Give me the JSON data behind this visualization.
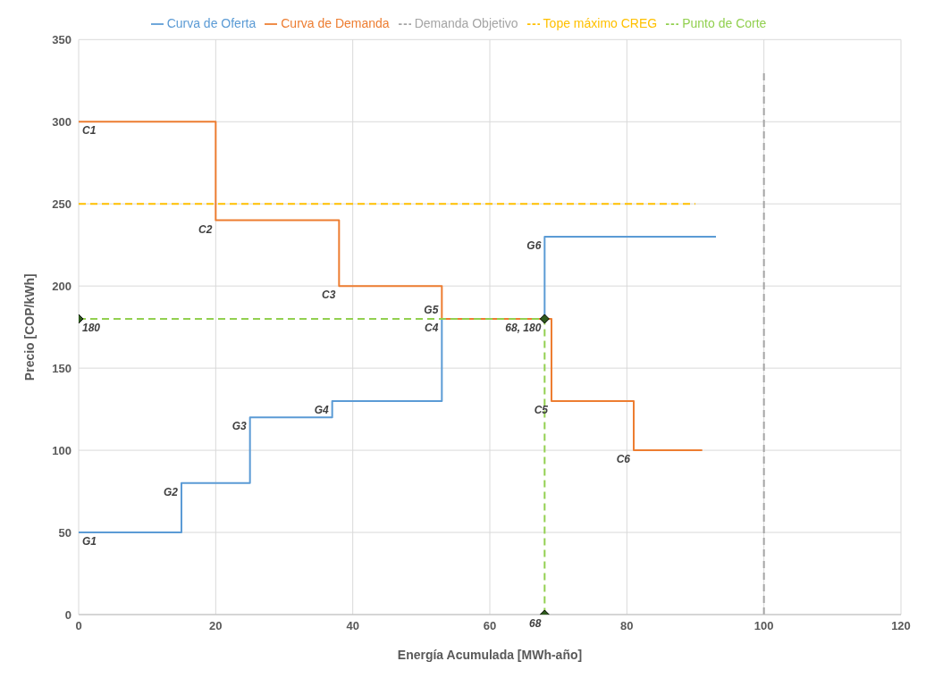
{
  "chart_data": {
    "type": "step",
    "xlabel": "Energía Acumulada [MWh-año]",
    "ylabel": "Precio [COP/kWh]",
    "xlim": [
      0,
      120
    ],
    "xticks": [
      0,
      20,
      40,
      60,
      80,
      100,
      120
    ],
    "ylim": [
      0,
      350
    ],
    "yticks": [
      0,
      50,
      100,
      150,
      200,
      250,
      300,
      350
    ],
    "grid": true,
    "legend": "top",
    "series": [
      {
        "name": "Curva de Oferta",
        "color": "#5b9bd5",
        "x": [
          0,
          15,
          25,
          37,
          53,
          68,
          93
        ],
        "values": [
          50,
          80,
          120,
          130,
          180,
          230,
          230
        ]
      },
      {
        "name": "Curva de Demanda",
        "color": "#ed7d31",
        "x": [
          0,
          20,
          38,
          53,
          69,
          81,
          91
        ],
        "values": [
          300,
          240,
          200,
          180,
          130,
          100,
          100
        ]
      },
      {
        "name": "Demanda Objetivo",
        "color": "#a5a5a5",
        "line_style": "dashed",
        "x": [
          100,
          100
        ],
        "values": [
          0,
          330
        ]
      },
      {
        "name": "Tope máximo CREG",
        "color": "#ffc000",
        "line_style": "dashed",
        "x": [
          0,
          90
        ],
        "values": [
          250,
          250
        ]
      },
      {
        "name": "Punto de Corte",
        "color": "#92d050",
        "line_style": "dashed",
        "marker": "diamond",
        "x": [
          0,
          68,
          68
        ],
        "values": [
          180,
          180,
          0
        ]
      }
    ],
    "annotations": [
      {
        "text": "C1",
        "x": 0,
        "y": 300
      },
      {
        "text": "C2",
        "x": 20,
        "y": 240
      },
      {
        "text": "C3",
        "x": 38,
        "y": 200
      },
      {
        "text": "C4",
        "x": 53,
        "y": 180
      },
      {
        "text": "C5",
        "x": 69,
        "y": 130
      },
      {
        "text": "C6",
        "x": 81,
        "y": 100
      },
      {
        "text": "G1",
        "x": 0,
        "y": 50
      },
      {
        "text": "G2",
        "x": 15,
        "y": 80
      },
      {
        "text": "G3",
        "x": 25,
        "y": 120
      },
      {
        "text": "G4",
        "x": 37,
        "y": 130
      },
      {
        "text": "G5",
        "x": 53,
        "y": 180
      },
      {
        "text": "G6",
        "x": 68,
        "y": 230
      },
      {
        "text": "180",
        "x": 0,
        "y": 180
      },
      {
        "text": "68, 180",
        "x": 68,
        "y": 180
      },
      {
        "text": "68",
        "x": 68,
        "y": 0
      }
    ]
  }
}
